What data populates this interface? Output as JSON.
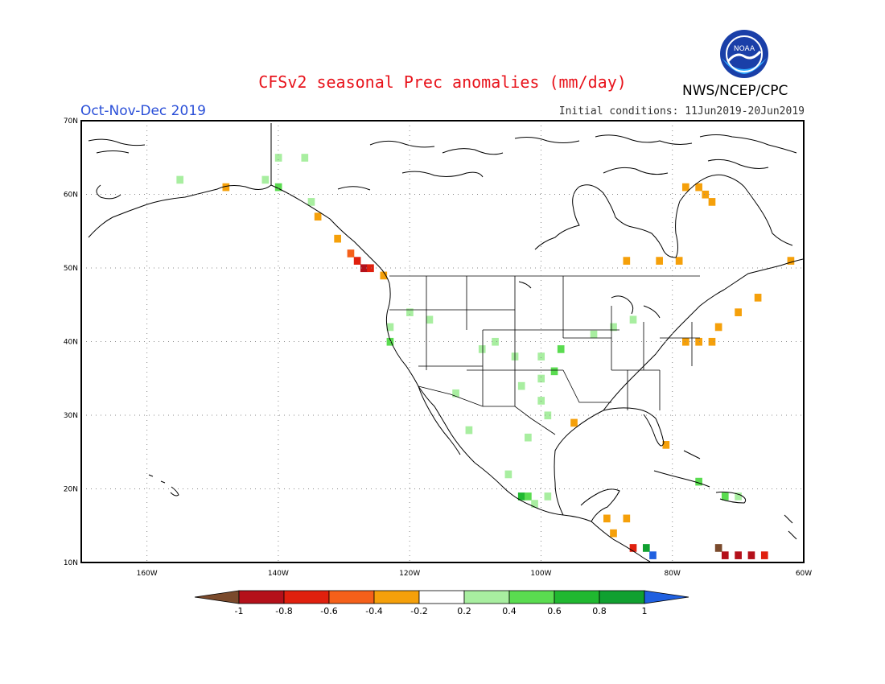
{
  "header": {
    "title": "CFSv2 seasonal Prec anomalies (mm/day)",
    "season": "Oct-Nov-Dec 2019",
    "initial_conditions": "Initial conditions: 11Jun2019-20Jun2019",
    "agency": "NWS/NCEP/CPC",
    "logo_text": "NOAA"
  },
  "map": {
    "lat_labels": [
      "70N",
      "60N",
      "50N",
      "40N",
      "30N",
      "20N",
      "10N"
    ],
    "lon_labels": [
      "160W",
      "140W",
      "120W",
      "100W",
      "80W",
      "60W"
    ],
    "extent": {
      "lon_min": -170,
      "lon_max": -60,
      "lat_min": 10,
      "lat_max": 70
    }
  },
  "colorbar": {
    "labels": [
      "-1",
      "-0.8",
      "-0.6",
      "-0.4",
      "-0.2",
      "0.2",
      "0.4",
      "0.6",
      "0.8",
      "1"
    ],
    "colors": [
      "#7a4a2c",
      "#b4101a",
      "#e0200e",
      "#f5601a",
      "#f5a00a",
      "#ffffff",
      "#a8eea0",
      "#5adc50",
      "#20b830",
      "#10a030",
      "#2060e0"
    ]
  },
  "anomaly_cells": [
    {
      "lat": 50,
      "lon": -127,
      "color": "#b4101a"
    },
    {
      "lat": 50,
      "lon": -126,
      "color": "#e0200e"
    },
    {
      "lat": 51,
      "lon": -128,
      "color": "#e0200e"
    },
    {
      "lat": 52,
      "lon": -129,
      "color": "#f5601a"
    },
    {
      "lat": 49,
      "lon": -124,
      "color": "#f5a00a"
    },
    {
      "lat": 54,
      "lon": -131,
      "color": "#f5a00a"
    },
    {
      "lat": 61,
      "lon": -148,
      "color": "#f5a00a"
    },
    {
      "lat": 57,
      "lon": -134,
      "color": "#f5a00a"
    },
    {
      "lat": 60,
      "lon": -75,
      "color": "#f5a00a"
    },
    {
      "lat": 61,
      "lon": -76,
      "color": "#f5a00a"
    },
    {
      "lat": 61,
      "lon": -78,
      "color": "#f5a00a"
    },
    {
      "lat": 59,
      "lon": -74,
      "color": "#f5a00a"
    },
    {
      "lat": 51,
      "lon": -79,
      "color": "#f5a00a"
    },
    {
      "lat": 51,
      "lon": -82,
      "color": "#f5a00a"
    },
    {
      "lat": 51,
      "lon": -87,
      "color": "#f5a00a"
    },
    {
      "lat": 51,
      "lon": -62,
      "color": "#f5a00a"
    },
    {
      "lat": 46,
      "lon": -67,
      "color": "#f5a00a"
    },
    {
      "lat": 44,
      "lon": -70,
      "color": "#f5a00a"
    },
    {
      "lat": 40,
      "lon": -76,
      "color": "#f5a00a"
    },
    {
      "lat": 40,
      "lon": -74,
      "color": "#f5a00a"
    },
    {
      "lat": 42,
      "lon": -73,
      "color": "#f5a00a"
    },
    {
      "lat": 40,
      "lon": -78,
      "color": "#f5a00a"
    },
    {
      "lat": 29,
      "lon": -95,
      "color": "#f5a00a"
    },
    {
      "lat": 26,
      "lon": -81,
      "color": "#f5a00a"
    },
    {
      "lat": 16,
      "lon": -90,
      "color": "#f5a00a"
    },
    {
      "lat": 16,
      "lon": -87,
      "color": "#f5a00a"
    },
    {
      "lat": 14,
      "lon": -89,
      "color": "#f5a00a"
    },
    {
      "lat": 12,
      "lon": -86,
      "color": "#e0200e"
    },
    {
      "lat": 11,
      "lon": -72,
      "color": "#b4101a"
    },
    {
      "lat": 11,
      "lon": -70,
      "color": "#b4101a"
    },
    {
      "lat": 11,
      "lon": -68,
      "color": "#b4101a"
    },
    {
      "lat": 12,
      "lon": -73,
      "color": "#7a4a2c"
    },
    {
      "lat": 11,
      "lon": -66,
      "color": "#e0200e"
    },
    {
      "lat": 65,
      "lon": -136,
      "color": "#a8eea0"
    },
    {
      "lat": 65,
      "lon": -140,
      "color": "#a8eea0"
    },
    {
      "lat": 62,
      "lon": -142,
      "color": "#a8eea0"
    },
    {
      "lat": 61,
      "lon": -140,
      "color": "#5adc50"
    },
    {
      "lat": 59,
      "lon": -135,
      "color": "#a8eea0"
    },
    {
      "lat": 62,
      "lon": -155,
      "color": "#a8eea0"
    },
    {
      "lat": 42,
      "lon": -123,
      "color": "#a8eea0"
    },
    {
      "lat": 40,
      "lon": -123,
      "color": "#5adc50"
    },
    {
      "lat": 44,
      "lon": -120,
      "color": "#a8eea0"
    },
    {
      "lat": 43,
      "lon": -117,
      "color": "#a8eea0"
    },
    {
      "lat": 40,
      "lon": -107,
      "color": "#a8eea0"
    },
    {
      "lat": 39,
      "lon": -109,
      "color": "#a8eea0"
    },
    {
      "lat": 38,
      "lon": -104,
      "color": "#a8eea0"
    },
    {
      "lat": 38,
      "lon": -100,
      "color": "#a8eea0"
    },
    {
      "lat": 39,
      "lon": -97,
      "color": "#5adc50"
    },
    {
      "lat": 36,
      "lon": -98,
      "color": "#5adc50"
    },
    {
      "lat": 35,
      "lon": -100,
      "color": "#a8eea0"
    },
    {
      "lat": 34,
      "lon": -103,
      "color": "#a8eea0"
    },
    {
      "lat": 32,
      "lon": -100,
      "color": "#a8eea0"
    },
    {
      "lat": 30,
      "lon": -99,
      "color": "#a8eea0"
    },
    {
      "lat": 27,
      "lon": -102,
      "color": "#a8eea0"
    },
    {
      "lat": 42,
      "lon": -89,
      "color": "#a8eea0"
    },
    {
      "lat": 41,
      "lon": -92,
      "color": "#a8eea0"
    },
    {
      "lat": 43,
      "lon": -86,
      "color": "#a8eea0"
    },
    {
      "lat": 33,
      "lon": -113,
      "color": "#a8eea0"
    },
    {
      "lat": 28,
      "lon": -111,
      "color": "#a8eea0"
    },
    {
      "lat": 22,
      "lon": -105,
      "color": "#a8eea0"
    },
    {
      "lat": 19,
      "lon": -103,
      "color": "#20b830"
    },
    {
      "lat": 19,
      "lon": -102,
      "color": "#5adc50"
    },
    {
      "lat": 18,
      "lon": -101,
      "color": "#a8eea0"
    },
    {
      "lat": 19,
      "lon": -99,
      "color": "#a8eea0"
    },
    {
      "lat": 21,
      "lon": -76,
      "color": "#5adc50"
    },
    {
      "lat": 19,
      "lon": -72,
      "color": "#5adc50"
    },
    {
      "lat": 19,
      "lon": -70,
      "color": "#a8eea0"
    },
    {
      "lat": 12,
      "lon": -84,
      "color": "#10a030"
    },
    {
      "lat": 11,
      "lon": -83,
      "color": "#2060e0"
    }
  ]
}
